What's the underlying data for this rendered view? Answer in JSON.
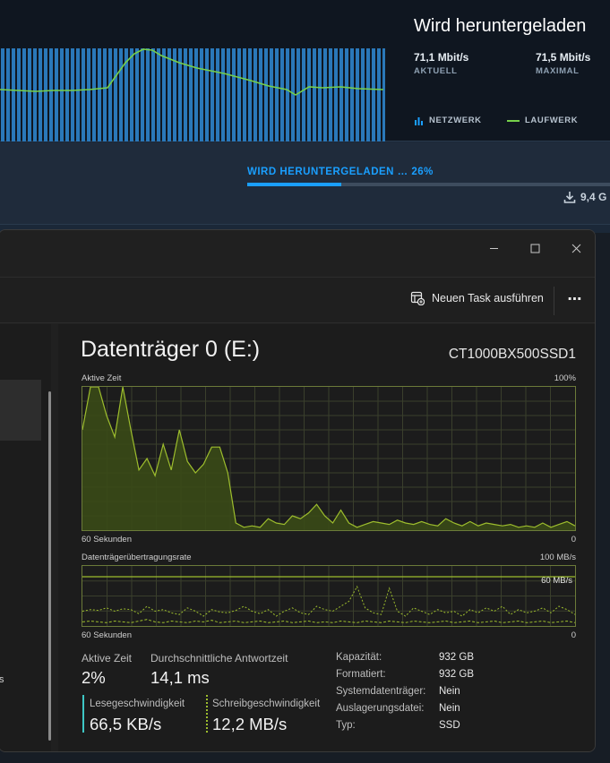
{
  "steam": {
    "title": "Wird heruntergeladen",
    "current": {
      "value": "71,1 Mbit/s",
      "label": "AKTUELL"
    },
    "peak": {
      "value": "71,5 Mbit/s",
      "label": "MAXIMAL"
    },
    "legend": {
      "network": "NETZWERK",
      "disk": "LAUFWERK"
    },
    "status_label": "WIRD HERUNTERGELADEN … 26%",
    "progress_percent": 26,
    "size_label": "9,4 G",
    "colors": {
      "accent": "#1a9fff",
      "bar": "#2a78b9",
      "disk_line": "#76d04a"
    }
  },
  "window": {
    "controls": [
      "minimize",
      "maximize",
      "close"
    ]
  },
  "toolbar": {
    "new_task_label": "Neuen Task ausführen",
    "more_label": "⋯"
  },
  "sidebar": {
    "partial_text": "s"
  },
  "disk": {
    "title": "Datenträger 0 (E:)",
    "model": "CT1000BX500SSD1",
    "active_graph": {
      "label": "Aktive Zeit",
      "max_label": "100%",
      "time_label": "60 Sekunden",
      "min_label": "0",
      "values_percent": [
        70,
        100,
        100,
        80,
        65,
        100,
        70,
        42,
        50,
        38,
        60,
        42,
        70,
        48,
        40,
        46,
        58,
        58,
        40,
        5,
        2,
        3,
        2,
        8,
        5,
        4,
        10,
        8,
        12,
        18,
        10,
        5,
        14,
        5,
        2,
        4,
        6,
        5,
        4,
        7,
        5,
        4,
        6,
        4,
        3,
        8,
        5,
        3,
        6,
        3,
        5,
        4,
        3,
        4,
        2,
        3,
        2,
        5,
        2,
        4,
        6,
        3
      ]
    },
    "transfer_graph": {
      "label": "Datenträgerübertragungsrate",
      "max_label": "100 MB/s",
      "scale_label": "60 MB/s",
      "time_label": "60 Sekunden",
      "min_label": "0",
      "read_values_mbs": [
        18,
        20,
        19,
        22,
        18,
        21,
        20,
        15,
        24,
        18,
        20,
        16,
        14,
        22,
        18,
        12,
        20,
        17,
        16,
        19,
        24,
        18,
        15,
        20,
        12,
        18,
        22,
        16,
        14,
        24,
        20,
        18,
        24,
        30,
        48,
        22,
        16,
        14,
        46,
        18,
        12,
        22,
        18,
        14,
        20,
        16,
        18,
        12,
        20,
        16,
        22,
        18,
        24,
        14,
        20,
        16,
        18,
        22,
        16,
        24,
        20,
        14
      ],
      "write_values_mbs": [
        5,
        6,
        5,
        4,
        6,
        5,
        4,
        6,
        8,
        5,
        4,
        6,
        5,
        4,
        6,
        5,
        7,
        4,
        5,
        6,
        4,
        5,
        6,
        4,
        5,
        6,
        4,
        5,
        6,
        4,
        5,
        4,
        6,
        5,
        4,
        6,
        5,
        4,
        6,
        5,
        4,
        6,
        5,
        4,
        5,
        6,
        4,
        5,
        6,
        4,
        5,
        6,
        4,
        5,
        6,
        4,
        5,
        6,
        4,
        5,
        6,
        4
      ]
    },
    "stats": {
      "active_time": {
        "label": "Aktive Zeit",
        "value": "2%"
      },
      "response_time": {
        "label": "Durchschnittliche Antwortzeit",
        "value": "14,1 ms"
      },
      "read_speed": {
        "label": "Lesegeschwindigkeit",
        "value": "66,5 KB/s"
      },
      "write_speed": {
        "label": "Schreibgeschwindigkeit",
        "value": "12,2 MB/s"
      }
    },
    "properties": [
      {
        "key": "Kapazität:",
        "value": "932 GB"
      },
      {
        "key": "Formatiert:",
        "value": "932 GB"
      },
      {
        "key": "Systemdatenträger:",
        "value": "Nein"
      },
      {
        "key": "Auslagerungsdatei:",
        "value": "Nein"
      },
      {
        "key": "Typ:",
        "value": "SSD"
      }
    ],
    "colors": {
      "accent": "#9dbd2d",
      "fill": "#3a4a17",
      "grid": "#3a3f2c",
      "border": "#6b7a39",
      "read": "#3ec7c5",
      "write": "#9dbd2d"
    }
  }
}
